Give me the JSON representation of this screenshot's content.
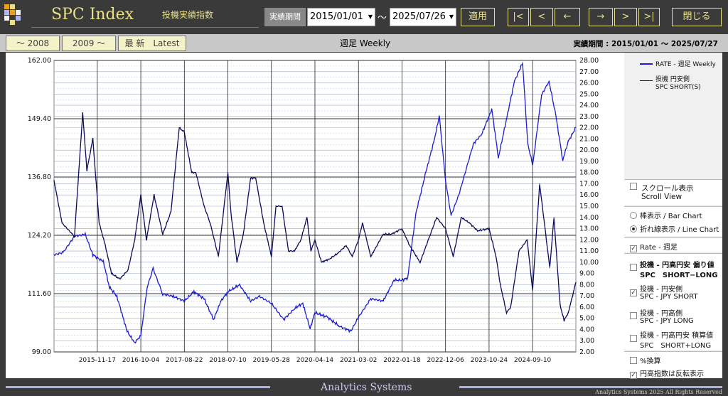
{
  "app": {
    "title": "SPC Index",
    "subtitle": "投機実績指数",
    "footer": "Analytics Systems",
    "copyright": "Analytics Systems 2025 All Rights Reserved"
  },
  "toolbar": {
    "period_label": "実績期間",
    "start_date": "2015/01/01",
    "end_date": "2025/07/26",
    "tilde": "～",
    "apply": "適用",
    "first": "|<",
    "prev": "<",
    "back": "←",
    "forward": "→",
    "next": ">",
    "last": ">|",
    "close": "閉じる"
  },
  "tabs": {
    "pre2008": "～ 2008",
    "post2009": "2009 ～",
    "latest": "最 新　Latest"
  },
  "chart_header": {
    "title": "週足 Weekly",
    "period": "実績期間 : 2015/01/01 ～ 2025/07/27"
  },
  "legend": {
    "rate": "RATE - 週足 Weekly",
    "spc_line1": "投機 円安側",
    "spc_line2": "SPC SHORT(S)"
  },
  "options": {
    "scroll_line1": "スクロール表示",
    "scroll_line2": "Scroll View",
    "bar": "棒表示 / Bar Chart",
    "line": "折れ線表示 / Line Chart",
    "rate": "Rate - 週足",
    "bias_line1": "投機 - 円高円安 偏り値",
    "bias_line2": "SPC　SHORT−LONG",
    "short_line1": "投機 - 円安側",
    "short_line2": "SPC - JPY SHORT",
    "long_line1": "投機 - 円高側",
    "long_line2": "SPC - JPY LONG",
    "total_line1": "投機 - 円高円安 積算値",
    "total_line2": "SPC　SHORT+LONG",
    "pct": "%換算",
    "invert": "円高指数は反転表示"
  },
  "colors": {
    "rate": "#1c1cd0",
    "spc": "#0c0c5e",
    "accent": "#e8e088"
  },
  "chart_data": {
    "type": "line",
    "title": "週足 Weekly",
    "x_tick_labels": [
      "2015-11-17",
      "2016-10-04",
      "2017-08-22",
      "2018-07-10",
      "2019-05-28",
      "2020-04-14",
      "2021-03-02",
      "2022-01-18",
      "2022-12-06",
      "2023-10-24",
      "2024-09-10"
    ],
    "x_range": [
      "2015-01-01",
      "2025-07-27"
    ],
    "y_left": {
      "range": [
        99.0,
        162.0
      ],
      "ticks": [
        "99.00",
        "111.60",
        "124.20",
        "136.80",
        "149.40",
        "162.00"
      ]
    },
    "y_right": {
      "range": [
        2.0,
        28.0
      ],
      "ticks": [
        "2.00",
        "3.00",
        "4.00",
        "5.00",
        "6.00",
        "7.00",
        "8.00",
        "9.00",
        "10.00",
        "11.00",
        "12.00",
        "13.00",
        "14.00",
        "15.00",
        "16.00",
        "17.00",
        "18.00",
        "19.00",
        "20.00",
        "21.00",
        "22.00",
        "23.00",
        "24.00",
        "25.00",
        "26.00",
        "27.00",
        "28.00"
      ]
    },
    "grid": true,
    "legend_position": "top-right",
    "series": [
      {
        "name": "RATE - 週足 Weekly",
        "axis": "left",
        "x": [
          "2015-01-01",
          "2015-03-10",
          "2015-06-01",
          "2015-08-20",
          "2015-10-15",
          "2016-01-01",
          "2016-02-15",
          "2016-04-10",
          "2016-06-24",
          "2016-08-20",
          "2016-10-04",
          "2016-11-20",
          "2017-01-03",
          "2017-03-15",
          "2017-06-01",
          "2017-08-22",
          "2017-11-01",
          "2018-01-15",
          "2018-03-26",
          "2018-05-20",
          "2018-07-10",
          "2018-10-04",
          "2018-12-25",
          "2019-03-01",
          "2019-05-28",
          "2019-08-26",
          "2019-11-20",
          "2020-01-15",
          "2020-03-09",
          "2020-04-14",
          "2020-07-15",
          "2020-10-15",
          "2021-01-05",
          "2021-03-02",
          "2021-06-01",
          "2021-09-01",
          "2021-11-20",
          "2022-01-18",
          "2022-03-01",
          "2022-05-01",
          "2022-07-15",
          "2022-09-15",
          "2022-10-21",
          "2022-12-06",
          "2023-01-16",
          "2023-03-15",
          "2023-06-30",
          "2023-08-30",
          "2023-10-24",
          "2023-11-13",
          "2024-01-01",
          "2024-04-29",
          "2024-06-28",
          "2024-08-05",
          "2024-09-10",
          "2024-09-16",
          "2024-11-15",
          "2025-01-10",
          "2025-03-01",
          "2025-04-21",
          "2025-06-01",
          "2025-07-27"
        ],
        "values": [
          120.0,
          120.5,
          124.0,
          124.4,
          120.0,
          118.5,
          113.0,
          111.0,
          103.5,
          101.0,
          102.5,
          113.0,
          117.0,
          111.5,
          111.0,
          110.0,
          112.0,
          110.5,
          106.0,
          110.0,
          112.0,
          113.5,
          110.0,
          111.0,
          109.5,
          106.0,
          108.5,
          109.5,
          104.0,
          107.5,
          106.5,
          104.5,
          103.5,
          106.5,
          110.5,
          110.0,
          114.5,
          114.5,
          115.0,
          129.0,
          138.0,
          145.0,
          150.0,
          136.0,
          128.5,
          133.0,
          144.0,
          146.0,
          150.0,
          151.5,
          141.0,
          157.5,
          161.5,
          144.0,
          139.5,
          140.5,
          154.5,
          157.5,
          150.0,
          140.5,
          144.5,
          147.5
        ]
      },
      {
        "name": "SPC SHORT(S)",
        "axis": "right",
        "x": [
          "2015-01-01",
          "2015-03-01",
          "2015-06-01",
          "2015-08-01",
          "2015-09-01",
          "2015-10-15",
          "2015-12-01",
          "2016-01-15",
          "2016-03-01",
          "2016-05-01",
          "2016-07-01",
          "2016-08-20",
          "2016-10-04",
          "2016-11-15",
          "2017-01-10",
          "2017-03-15",
          "2017-05-15",
          "2017-07-15",
          "2017-08-22",
          "2017-10-15",
          "2017-11-15",
          "2018-01-15",
          "2018-03-01",
          "2018-05-01",
          "2018-07-10",
          "2018-08-01",
          "2018-09-15",
          "2018-11-01",
          "2018-12-25",
          "2019-02-01",
          "2019-04-01",
          "2019-05-28",
          "2019-07-01",
          "2019-08-15",
          "2019-10-01",
          "2019-11-15",
          "2020-01-01",
          "2020-02-15",
          "2020-03-15",
          "2020-04-14",
          "2020-06-01",
          "2020-08-01",
          "2020-10-01",
          "2020-12-01",
          "2021-01-15",
          "2021-03-02",
          "2021-04-01",
          "2021-06-01",
          "2021-09-01",
          "2021-11-01",
          "2022-01-18",
          "2022-03-15",
          "2022-06-01",
          "2022-08-01",
          "2022-10-01",
          "2022-12-06",
          "2023-02-01",
          "2023-04-01",
          "2023-06-01",
          "2023-08-01",
          "2023-10-24",
          "2023-12-15",
          "2024-01-15",
          "2024-03-01",
          "2024-04-01",
          "2024-06-01",
          "2024-08-01",
          "2024-09-10",
          "2024-11-01",
          "2025-01-15",
          "2025-02-15",
          "2025-04-01",
          "2025-05-01",
          "2025-06-01",
          "2025-07-27"
        ],
        "values": [
          17.3,
          13.5,
          12.3,
          23.3,
          18.2,
          21.0,
          13.5,
          11.5,
          9.0,
          8.5,
          9.3,
          12.0,
          16.0,
          12.0,
          16.0,
          12.5,
          14.5,
          22.0,
          21.6,
          18.0,
          18.0,
          15.0,
          13.5,
          10.5,
          18.0,
          14.5,
          10.0,
          12.5,
          17.5,
          17.5,
          13.5,
          10.5,
          15.0,
          15.0,
          11.0,
          11.0,
          12.0,
          14.0,
          11.0,
          12.0,
          10.0,
          10.3,
          10.8,
          11.5,
          10.5,
          12.0,
          13.5,
          10.5,
          12.5,
          12.5,
          13.0,
          11.5,
          10.0,
          12.0,
          14.0,
          13.0,
          10.5,
          14.0,
          13.5,
          12.8,
          13.0,
          10.5,
          8.0,
          5.5,
          6.0,
          11.0,
          12.0,
          7.5,
          17.0,
          9.5,
          14.0,
          6.2,
          4.8,
          5.5,
          8.2
        ]
      }
    ]
  }
}
